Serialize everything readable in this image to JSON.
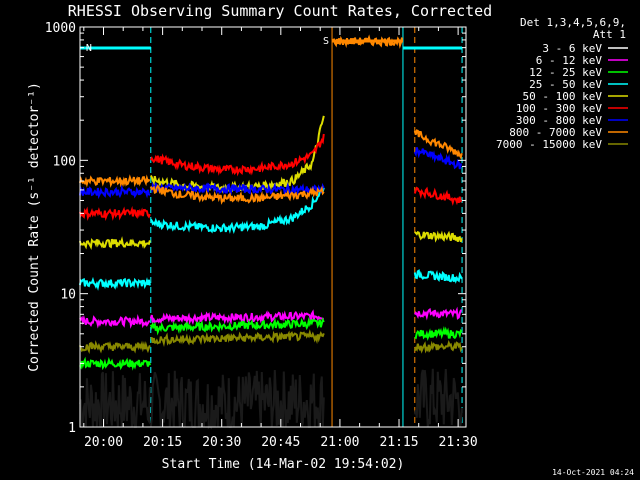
{
  "chart_data": {
    "type": "line",
    "title": "RHESSI Observing Summary Count Rates, Corrected",
    "ylabel": "Corrected Count Rate (s⁻¹ detector⁻¹)",
    "xlabel": "Start Time (14-Mar-02 19:54:02)",
    "y_scale": "log",
    "ylim": [
      1,
      1000
    ],
    "xlim": [
      "19:54:02",
      "21:32"
    ],
    "x_ticks": [
      "20:00",
      "20:15",
      "20:30",
      "20:45",
      "21:00",
      "21:15",
      "21:30"
    ],
    "y_ticks": [
      "1",
      "10",
      "100",
      "1000"
    ],
    "detectors_text": "Det 1,3,4,5,6,9,",
    "attenuator_text": "Att 1",
    "footer_date": "14-Oct-2021 04:24",
    "flags": [
      {
        "label": "N",
        "name": "night",
        "start": "19:54",
        "end": "20:12",
        "color": "#00ffff"
      },
      {
        "label": "S",
        "name": "SAA",
        "start": "20:58",
        "end": "21:16",
        "color": "#ff8800"
      },
      {
        "label": "",
        "name": "night",
        "start": "21:16",
        "end": "21:31",
        "color": "#00ffff"
      }
    ],
    "vertical_markers": [
      {
        "time": "20:12",
        "style": "dashed",
        "color": "#00ffff"
      },
      {
        "time": "20:58",
        "style": "solid",
        "color": "#ff8800"
      },
      {
        "time": "21:16",
        "style": "solid",
        "color": "#00ffff"
      },
      {
        "time": "21:19",
        "style": "dashed",
        "color": "#ff8800"
      },
      {
        "time": "21:31",
        "style": "dashed",
        "color": "#00ffff"
      }
    ],
    "series": [
      {
        "name": "3 - 6 keV",
        "color": "#000000",
        "segments": [
          {
            "times": [
              "19:54",
              "20:12"
            ],
            "values": [
              1.5,
              1.5
            ]
          },
          {
            "times": [
              "20:12",
              "20:40",
              "20:56"
            ],
            "values": [
              1.5,
              1.5,
              1.6
            ]
          },
          {
            "times": [
              "21:19",
              "21:31"
            ],
            "values": [
              1.6,
              1.6
            ]
          }
        ]
      },
      {
        "name": "6 - 12 keV",
        "color": "#ff00ff",
        "segments": [
          {
            "times": [
              "19:54",
              "20:12"
            ],
            "values": [
              6.2,
              6.2
            ]
          },
          {
            "times": [
              "20:12",
              "20:56"
            ],
            "values": [
              6.5,
              6.8
            ]
          },
          {
            "times": [
              "21:19",
              "21:31"
            ],
            "values": [
              7.2,
              7.0
            ]
          }
        ]
      },
      {
        "name": "12 - 25 keV",
        "color": "#00ff00",
        "segments": [
          {
            "times": [
              "19:54",
              "20:12"
            ],
            "values": [
              3.0,
              3.0
            ]
          },
          {
            "times": [
              "20:12",
              "20:56"
            ],
            "values": [
              5.5,
              6.0
            ]
          },
          {
            "times": [
              "21:19",
              "21:31"
            ],
            "values": [
              5.0,
              5.0
            ]
          }
        ]
      },
      {
        "name": "25 - 50 keV",
        "color": "#00ffff",
        "segments": [
          {
            "times": [
              "19:54",
              "20:12"
            ],
            "values": [
              12,
              12
            ]
          },
          {
            "times": [
              "20:12",
              "20:20",
              "20:30",
              "20:40",
              "20:48",
              "20:53",
              "20:56"
            ],
            "values": [
              34,
              32,
              31,
              32,
              37,
              47,
              64
            ]
          },
          {
            "times": [
              "21:19",
              "21:31"
            ],
            "values": [
              14,
              13
            ]
          }
        ]
      },
      {
        "name": "50 - 100 keV",
        "color": "#dddd00",
        "segments": [
          {
            "times": [
              "19:54",
              "20:12"
            ],
            "values": [
              24,
              24
            ]
          },
          {
            "times": [
              "20:12",
              "20:20",
              "20:30",
              "20:40",
              "20:48",
              "20:53",
              "20:56"
            ],
            "values": [
              72,
              65,
              62,
              64,
              70,
              95,
              220
            ]
          },
          {
            "times": [
              "21:19",
              "21:31"
            ],
            "values": [
              28,
              26
            ]
          }
        ]
      },
      {
        "name": "100 - 300 keV",
        "color": "#ff0000",
        "segments": [
          {
            "times": [
              "19:54",
              "20:12"
            ],
            "values": [
              40,
              40
            ]
          },
          {
            "times": [
              "20:12",
              "20:20",
              "20:30",
              "20:40",
              "20:48",
              "20:53",
              "20:56"
            ],
            "values": [
              105,
              92,
              85,
              87,
              95,
              110,
              150
            ]
          },
          {
            "times": [
              "21:19",
              "21:31"
            ],
            "values": [
              60,
              50
            ]
          }
        ]
      },
      {
        "name": "300 - 800 keV",
        "color": "#0000ff",
        "segments": [
          {
            "times": [
              "19:54",
              "20:12"
            ],
            "values": [
              58,
              58
            ]
          },
          {
            "times": [
              "20:12",
              "20:56"
            ],
            "values": [
              62,
              60
            ]
          },
          {
            "times": [
              "21:19",
              "21:31"
            ],
            "values": [
              120,
              90
            ]
          }
        ]
      },
      {
        "name": "800 - 7000 keV",
        "color": "#ff8800",
        "segments": [
          {
            "times": [
              "19:54",
              "20:12"
            ],
            "values": [
              70,
              70
            ]
          },
          {
            "times": [
              "20:12",
              "20:20",
              "20:30",
              "20:40",
              "20:56"
            ],
            "values": [
              62,
              55,
              52,
              52,
              58
            ]
          },
          {
            "times": [
              "20:58",
              "21:16"
            ],
            "values": [
              780,
              780
            ]
          },
          {
            "times": [
              "21:19",
              "21:31"
            ],
            "values": [
              160,
              110
            ]
          }
        ]
      },
      {
        "name": "7000 - 15000 keV",
        "color": "#888800",
        "segments": [
          {
            "times": [
              "19:54",
              "20:12"
            ],
            "values": [
              4.0,
              4.0
            ]
          },
          {
            "times": [
              "20:12",
              "20:56"
            ],
            "values": [
              4.5,
              4.8
            ]
          },
          {
            "times": [
              "21:19",
              "21:31"
            ],
            "values": [
              4.0,
              4.0
            ]
          }
        ]
      }
    ]
  }
}
